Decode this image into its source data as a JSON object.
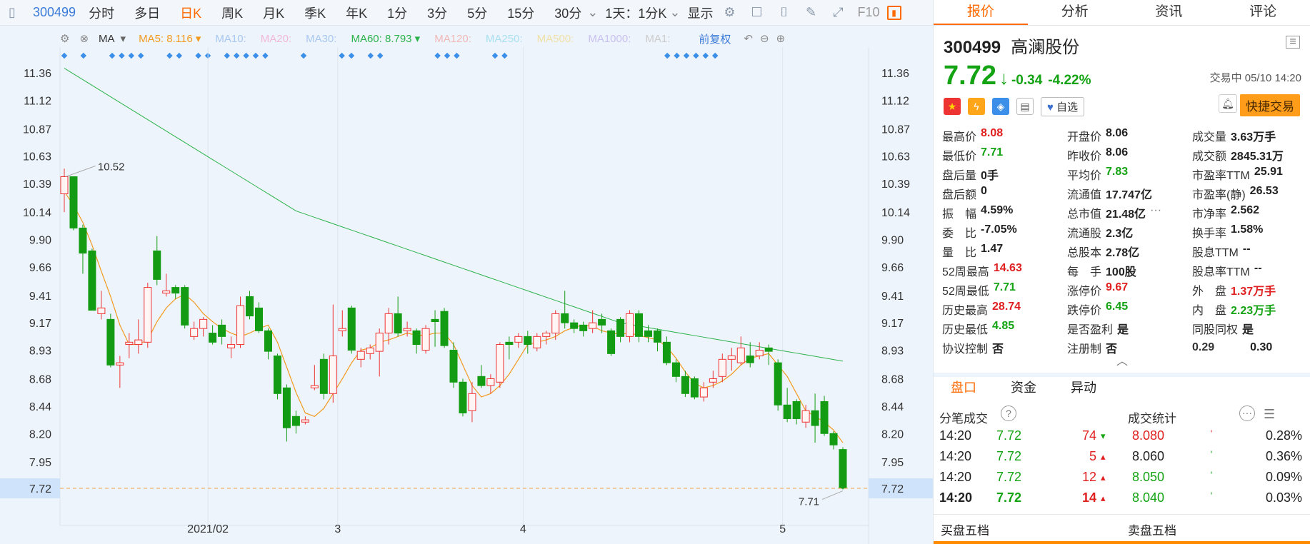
{
  "toolbar": {
    "code": "300499",
    "items": [
      "分时",
      "多日",
      "日K",
      "周K",
      "月K",
      "季K",
      "年K",
      "1分",
      "3分",
      "5分",
      "15分",
      "30分"
    ],
    "active": "日K",
    "combo": "1天：1分K",
    "display": "显示",
    "f10": "F10"
  },
  "ma": {
    "label": "MA",
    "ma5": "MA5: 8.116",
    "ma10": "MA10:",
    "ma20": "MA20:",
    "ma30": "MA30:",
    "ma60": "MA60: 8.793",
    "ma120": "MA120:",
    "ma250": "MA250:",
    "ma500": "MA500:",
    "ma1000": "MA1000:",
    "ma1": "MA1:",
    "fq": "前复权"
  },
  "chart_data": {
    "type": "candlestick",
    "y_ticks": [
      "11.36",
      "11.12",
      "10.87",
      "10.63",
      "10.39",
      "10.14",
      "9.90",
      "9.66",
      "9.41",
      "9.17",
      "8.93",
      "8.68",
      "8.44",
      "8.20",
      "7.95"
    ],
    "current_price_label": "7.72",
    "x_labels": [
      "2021/02",
      "3",
      "4",
      "5"
    ],
    "high_annotation": "10.52",
    "low_annotation": "7.71",
    "ylim": [
      7.6,
      11.5
    ],
    "candles": [
      [
        10.3,
        10.45,
        10.52,
        10.14
      ],
      [
        10.45,
        10.0,
        10.45,
        9.98
      ],
      [
        10.0,
        9.78,
        10.03,
        9.6
      ],
      [
        9.8,
        9.28,
        9.82,
        9.28
      ],
      [
        9.25,
        9.3,
        9.45,
        9.2
      ],
      [
        9.2,
        8.8,
        9.25,
        8.78
      ],
      [
        8.8,
        8.82,
        8.88,
        8.6
      ],
      [
        8.98,
        9.0,
        9.08,
        8.86
      ],
      [
        8.98,
        9.02,
        9.2,
        8.9
      ],
      [
        9.0,
        9.48,
        9.52,
        8.95
      ],
      [
        9.8,
        9.55,
        9.93,
        9.5
      ],
      [
        9.43,
        9.45,
        9.6,
        9.4
      ],
      [
        9.48,
        9.43,
        9.5,
        9.38
      ],
      [
        9.48,
        9.15,
        9.5,
        9.12
      ],
      [
        9.05,
        9.12,
        9.18,
        9.02
      ],
      [
        9.12,
        9.2,
        9.22,
        9.05
      ],
      [
        9.08,
        9.0,
        9.15,
        8.98
      ],
      [
        9.15,
        9.05,
        9.2,
        8.98
      ],
      [
        8.95,
        8.98,
        9.05,
        8.86
      ],
      [
        8.98,
        9.32,
        9.4,
        8.95
      ],
      [
        9.4,
        9.23,
        9.45,
        9.2
      ],
      [
        9.3,
        9.1,
        9.35,
        9.08
      ],
      [
        9.1,
        8.92,
        9.12,
        8.85
      ],
      [
        8.88,
        8.55,
        8.9,
        8.5
      ],
      [
        8.6,
        8.25,
        8.63,
        8.13
      ],
      [
        8.35,
        8.27,
        8.4,
        8.2
      ],
      [
        8.3,
        8.32,
        8.35,
        8.28
      ],
      [
        8.6,
        8.62,
        8.8,
        8.58
      ],
      [
        8.85,
        8.55,
        8.9,
        8.5
      ],
      [
        8.55,
        8.88,
        9.33,
        8.47
      ],
      [
        9.1,
        9.12,
        9.28,
        9.05
      ],
      [
        9.3,
        8.93,
        9.32,
        8.9
      ],
      [
        8.85,
        8.92,
        8.95,
        8.78
      ],
      [
        8.9,
        8.95,
        8.98,
        8.85
      ],
      [
        8.92,
        9.08,
        9.12,
        8.7
      ],
      [
        9.08,
        9.25,
        9.3,
        8.98
      ],
      [
        9.25,
        9.08,
        9.4,
        9.05
      ],
      [
        9.1,
        9.12,
        9.18,
        9.05
      ],
      [
        9.1,
        8.98,
        9.12,
        8.9
      ],
      [
        8.93,
        9.12,
        9.15,
        8.9
      ],
      [
        9.2,
        9.18,
        9.28,
        8.96
      ],
      [
        9.27,
        8.97,
        9.3,
        8.95
      ],
      [
        8.93,
        8.65,
        9.0,
        8.6
      ],
      [
        8.65,
        8.38,
        8.68,
        8.35
      ],
      [
        8.4,
        8.55,
        8.65,
        8.3
      ],
      [
        8.7,
        8.62,
        8.8,
        8.6
      ],
      [
        8.62,
        8.68,
        8.72,
        8.55
      ],
      [
        8.65,
        8.98,
        9.0,
        8.6
      ],
      [
        9.0,
        8.98,
        9.05,
        8.85
      ],
      [
        9.0,
        9.05,
        9.08,
        8.95
      ],
      [
        9.05,
        8.98,
        9.1,
        8.9
      ],
      [
        8.95,
        9.05,
        9.08,
        8.92
      ],
      [
        9.05,
        9.08,
        9.1,
        8.98
      ],
      [
        9.08,
        9.25,
        9.28,
        9.02
      ],
      [
        9.25,
        9.17,
        9.45,
        9.12
      ],
      [
        9.17,
        9.12,
        9.2,
        9.08
      ],
      [
        9.15,
        9.1,
        9.18,
        9.05
      ],
      [
        9.12,
        9.17,
        9.28,
        9.08
      ],
      [
        9.2,
        9.15,
        9.25,
        9.08
      ],
      [
        9.1,
        8.9,
        9.12,
        8.88
      ],
      [
        9.2,
        9.05,
        9.22,
        9.0
      ],
      [
        9.05,
        9.25,
        9.28,
        9.0
      ],
      [
        9.25,
        9.05,
        9.28,
        9.0
      ],
      [
        9.1,
        9.05,
        9.15,
        9.0
      ],
      [
        9.1,
        9.0,
        9.12,
        8.92
      ],
      [
        9.0,
        8.82,
        9.05,
        8.8
      ],
      [
        8.82,
        8.7,
        8.85,
        8.65
      ],
      [
        8.7,
        8.55,
        8.75,
        8.52
      ],
      [
        8.68,
        8.52,
        8.7,
        8.5
      ],
      [
        8.52,
        8.6,
        8.65,
        8.48
      ],
      [
        8.65,
        8.68,
        8.75,
        8.6
      ],
      [
        8.7,
        8.85,
        8.9,
        8.65
      ],
      [
        8.85,
        8.88,
        8.95,
        8.75
      ],
      [
        8.82,
        8.95,
        9.05,
        8.8
      ],
      [
        8.88,
        8.82,
        9.0,
        8.78
      ],
      [
        8.88,
        8.93,
        9.0,
        8.85
      ],
      [
        8.95,
        8.92,
        8.98,
        8.8
      ],
      [
        8.82,
        8.45,
        8.85,
        8.4
      ],
      [
        8.45,
        8.33,
        8.6,
        8.3
      ],
      [
        8.48,
        8.33,
        8.5,
        8.28
      ],
      [
        8.3,
        8.4,
        8.45,
        8.25
      ],
      [
        8.4,
        8.27,
        8.55,
        8.12
      ],
      [
        8.48,
        8.2,
        8.53,
        8.18
      ],
      [
        8.2,
        8.1,
        8.22,
        8.06
      ],
      [
        8.06,
        7.72,
        8.08,
        7.71
      ]
    ],
    "ma5_series": [
      10.32,
      10.2,
      10.05,
      9.85,
      9.62,
      9.4,
      9.15,
      8.98,
      8.98,
      9.02,
      9.18,
      9.3,
      9.38,
      9.42,
      9.35,
      9.25,
      9.18,
      9.12,
      9.08,
      9.05,
      9.08,
      9.12,
      9.15,
      9.0,
      8.78,
      8.56,
      8.38,
      8.35,
      8.42,
      8.55,
      8.68,
      8.82,
      8.93,
      8.95,
      9.0,
      9.02,
      9.05,
      9.08,
      9.06,
      9.06,
      9.08,
      9.08,
      8.98,
      8.8,
      8.62,
      8.52,
      8.55,
      8.62,
      8.72,
      8.85,
      8.98,
      9.0,
      9.02,
      9.05,
      9.1,
      9.13,
      9.15,
      9.14,
      9.1,
      9.08,
      9.07,
      9.08,
      9.06,
      9.04,
      9.02,
      8.96,
      8.86,
      8.74,
      8.64,
      8.6,
      8.62,
      8.66,
      8.72,
      8.8,
      8.86,
      8.88,
      8.9,
      8.8,
      8.7,
      8.55,
      8.4,
      8.35,
      8.3,
      8.23,
      8.12
    ]
  },
  "panel": {
    "tabs": [
      "报价",
      "分析",
      "资讯",
      "评论"
    ],
    "code": "300499",
    "name": "高澜股份",
    "price": "7.72",
    "arrow": "↓",
    "chg": "-0.34",
    "pct": "-4.22%",
    "time": "交易中 05/10 14:20",
    "zixuan": "自选",
    "quick": "快捷交易",
    "stats": [
      [
        [
          "最高价",
          "8.08",
          "up"
        ],
        [
          "开盘价",
          "8.06",
          ""
        ],
        [
          "成交量",
          "3.63万手",
          ""
        ]
      ],
      [
        [
          "最低价",
          "7.71",
          "down"
        ],
        [
          "昨收价",
          "8.06",
          ""
        ],
        [
          "成交额",
          "2845.31万",
          ""
        ]
      ],
      [
        [
          "盘后量",
          "0手",
          ""
        ],
        [
          "平均价",
          "7.83",
          "down"
        ],
        [
          "市盈率TTM",
          "25.91",
          ""
        ]
      ],
      [
        [
          "盘后额",
          "0",
          ""
        ],
        [
          "流通值",
          "17.747亿",
          ""
        ],
        [
          "市盈率(静)",
          "26.53",
          ""
        ]
      ],
      [
        [
          "振　幅",
          "4.59%",
          ""
        ],
        [
          "总市值",
          "21.48亿",
          ""
        ],
        [
          "市净率",
          "2.562",
          ""
        ]
      ],
      [
        [
          "委　比",
          "-7.05%",
          ""
        ],
        [
          "流通股",
          "2.3亿",
          ""
        ],
        [
          "换手率",
          "1.58%",
          ""
        ]
      ],
      [
        [
          "量　比",
          "1.47",
          ""
        ],
        [
          "总股本",
          "2.78亿",
          ""
        ],
        [
          "股息TTM",
          "--",
          ""
        ]
      ],
      [
        [
          "52周最高",
          "14.63",
          "up"
        ],
        [
          "每　手",
          "100股",
          ""
        ],
        [
          "股息率TTM",
          "--",
          ""
        ]
      ],
      [
        [
          "52周最低",
          "7.71",
          "down"
        ],
        [
          "涨停价",
          "9.67",
          "up"
        ],
        [
          "外　盘",
          "1.37万手",
          "up"
        ]
      ],
      [
        [
          "历史最高",
          "28.74",
          "up"
        ],
        [
          "跌停价",
          "6.45",
          "down"
        ],
        [
          "内　盘",
          "2.23万手",
          "down"
        ]
      ],
      [
        [
          "历史最低",
          "4.85",
          "down"
        ],
        [
          "是否盈利",
          "是",
          ""
        ],
        [
          "同股同权",
          "是",
          ""
        ]
      ],
      [
        [
          "协议控制",
          "否",
          ""
        ],
        [
          "注册制",
          "否",
          ""
        ],
        [
          "0.29",
          "0.30",
          ""
        ]
      ]
    ],
    "subtabs": [
      "盘口",
      "资金",
      "异动"
    ],
    "trades_title": "分笔成交",
    "deal_title": "成交统计",
    "trades": [
      [
        "14:20",
        "7.72",
        "74"
      ],
      [
        "14:20",
        "7.72",
        "5"
      ],
      [
        "14:20",
        "7.72",
        "12"
      ],
      [
        "14:20",
        "7.72",
        "14"
      ]
    ],
    "deals": [
      [
        "8.080",
        "0.28%",
        "up"
      ],
      [
        "8.060",
        "0.36%",
        ""
      ],
      [
        "8.050",
        "0.09%",
        "down"
      ],
      [
        "8.040",
        "0.03%",
        "down"
      ]
    ],
    "buy5": "买盘五档",
    "sell5": "卖盘五档"
  }
}
